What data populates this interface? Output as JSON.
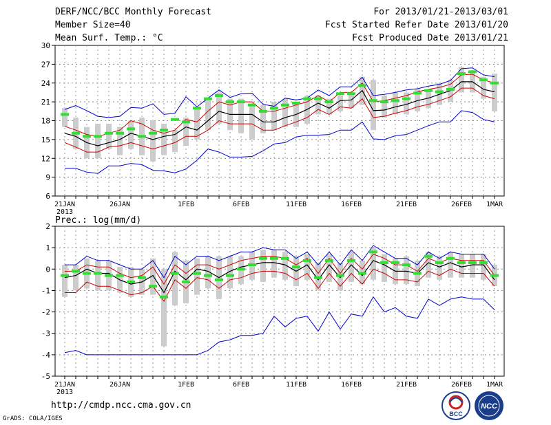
{
  "header": {
    "title": "DERF/NCC/BCC Monthly Forecast",
    "member_size": "Member Size=40",
    "variable": "Mean Surf. Temp.: °C",
    "period": "For 2013/01/21-2013/03/01",
    "fcst_started": "Fcst Started Refer Date 2013/01/20",
    "fcst_produced": "Fcst Produced Date 2013/01/21"
  },
  "footer": {
    "url": "http://cmdp.ncc.cma.gov.cn",
    "credit": "GrADS: COLA/IGES",
    "logos": [
      "BCC",
      "NCC"
    ]
  },
  "colors": {
    "ensemble_max_min": "#0000cc",
    "plus_minus_spread": "#cc0000",
    "ensemble_mean": "#000000",
    "box": "#cccccc",
    "marker": "#33dd33"
  },
  "chart_data": [
    {
      "type": "line",
      "title": "Mean Surf. Temp.: °C",
      "ylim": [
        6,
        30
      ],
      "yticks": [
        6,
        9,
        12,
        15,
        18,
        21,
        24,
        27,
        30
      ],
      "xticks": [
        {
          "day": 0,
          "label": "21JAN",
          "sub": "2013"
        },
        {
          "day": 5,
          "label": "26JAN"
        },
        {
          "day": 11,
          "label": "1FEB"
        },
        {
          "day": 16,
          "label": "6FEB"
        },
        {
          "day": 21,
          "label": "11FEB"
        },
        {
          "day": 26,
          "label": "16FEB"
        },
        {
          "day": 31,
          "label": "21FEB"
        },
        {
          "day": 36,
          "label": "26FEB"
        },
        {
          "day": 39,
          "label": "1MAR"
        }
      ],
      "series": [
        {
          "name": "max",
          "values": [
            19.8,
            20.4,
            19.6,
            18.7,
            18.5,
            18.7,
            20.1,
            20.0,
            20.7,
            19.0,
            19.2,
            21.8,
            20.2,
            21.6,
            22.9,
            21.7,
            22.3,
            22.4,
            20.6,
            20.3,
            21.6,
            21.3,
            21.6,
            22.9,
            22.0,
            23.4,
            23.4,
            24.9,
            22.0,
            22.2,
            22.5,
            22.9,
            23.1,
            23.5,
            23.8,
            24.4,
            26.3,
            26.4,
            25.3,
            25.0
          ]
        },
        {
          "name": "upper",
          "values": [
            17.1,
            16.5,
            15.8,
            15.5,
            16.0,
            16.5,
            18.0,
            17.5,
            16.5,
            16.0,
            16.5,
            18.2,
            17.8,
            19.5,
            21.0,
            20.5,
            21.0,
            21.0,
            19.5,
            19.5,
            20.0,
            20.5,
            21.0,
            22.0,
            21.0,
            22.5,
            22.5,
            24.0,
            21.0,
            21.2,
            21.6,
            22.0,
            22.6,
            23.0,
            23.3,
            23.8,
            25.3,
            25.4,
            24.5,
            24.0
          ]
        },
        {
          "name": "mean",
          "values": [
            16.0,
            15.5,
            14.5,
            14.0,
            14.5,
            15.0,
            16.0,
            15.5,
            15.0,
            15.5,
            15.8,
            17.0,
            16.5,
            18.0,
            19.5,
            19.0,
            19.0,
            19.0,
            17.8,
            17.8,
            18.5,
            19.0,
            19.8,
            20.8,
            20.0,
            21.2,
            21.3,
            22.8,
            19.6,
            19.7,
            20.2,
            20.6,
            21.2,
            21.6,
            22.2,
            22.8,
            24.2,
            24.2,
            23.0,
            22.6
          ]
        },
        {
          "name": "lower",
          "values": [
            14.5,
            13.8,
            13.0,
            13.0,
            13.8,
            14.0,
            14.5,
            14.0,
            13.5,
            14.0,
            14.5,
            15.5,
            15.5,
            16.5,
            18.0,
            17.5,
            17.5,
            17.5,
            16.5,
            16.5,
            17.2,
            17.8,
            18.5,
            19.8,
            19.0,
            20.2,
            20.0,
            21.5,
            18.5,
            18.7,
            19.2,
            19.6,
            20.2,
            20.6,
            21.2,
            21.8,
            23.2,
            23.2,
            22.0,
            21.5
          ]
        },
        {
          "name": "min",
          "values": [
            10.4,
            10.4,
            9.8,
            9.6,
            10.8,
            10.8,
            11.2,
            11.0,
            10.1,
            10.0,
            9.7,
            10.3,
            11.7,
            13.5,
            13.0,
            12.2,
            12.2,
            12.3,
            13.2,
            14.3,
            14.5,
            15.4,
            15.7,
            15.7,
            15.8,
            16.5,
            16.5,
            17.8,
            15.1,
            15.0,
            15.6,
            15.8,
            16.5,
            17.2,
            17.8,
            17.8,
            19.6,
            19.3,
            18.2,
            17.8
          ]
        },
        {
          "name": "box_high",
          "values": [
            20.0,
            18.5,
            17.0,
            17.5,
            17.5,
            17.0,
            18.0,
            18.5,
            18.0,
            17.5,
            16.5,
            18.5,
            20.0,
            21.5,
            22.5,
            21.5,
            21.5,
            20.5,
            20.5,
            21.0,
            21.5,
            21.0,
            22.0,
            22.0,
            21.5,
            22.0,
            22.5,
            25.0,
            24.5,
            22.0,
            22.5,
            22.5,
            23.0,
            23.0,
            24.0,
            24.5,
            26.5,
            26.0,
            25.0,
            25.5
          ]
        },
        {
          "name": "box_low",
          "values": [
            17.0,
            13.5,
            12.0,
            12.0,
            13.5,
            12.5,
            13.5,
            12.5,
            11.5,
            12.5,
            13.0,
            14.0,
            15.0,
            16.5,
            17.5,
            16.5,
            16.0,
            15.0,
            16.0,
            16.5,
            17.0,
            17.0,
            17.5,
            19.0,
            19.0,
            19.5,
            20.0,
            20.5,
            16.5,
            18.5,
            19.0,
            19.0,
            19.5,
            20.0,
            20.5,
            21.0,
            22.5,
            22.5,
            21.5,
            19.5
          ]
        },
        {
          "name": "marker",
          "values": [
            19.0,
            16.0,
            15.5,
            15.5,
            16.0,
            16.0,
            16.7,
            15.5,
            16.0,
            16.5,
            18.2,
            17.8,
            20.0,
            21.5,
            22.0,
            21.0,
            21.0,
            20.5,
            19.5,
            20.0,
            20.5,
            20.8,
            21.5,
            21.5,
            21.0,
            22.3,
            22.3,
            23.6,
            21.2,
            21.0,
            21.2,
            21.5,
            22.4,
            22.8,
            22.6,
            23.0,
            25.5,
            25.8,
            24.5,
            24.0
          ]
        }
      ]
    },
    {
      "type": "line",
      "title": "Prec.: log(mm/d)",
      "ylim": [
        -5,
        2
      ],
      "yticks": [
        -5,
        -4,
        -3,
        -2,
        -1,
        0,
        1,
        2
      ],
      "xticks": [
        {
          "day": 0,
          "label": "21JAN",
          "sub": "2013"
        },
        {
          "day": 5,
          "label": "26JAN"
        },
        {
          "day": 11,
          "label": "1FEB"
        },
        {
          "day": 16,
          "label": "6FEB"
        },
        {
          "day": 21,
          "label": "11FEB"
        },
        {
          "day": 26,
          "label": "16FEB"
        },
        {
          "day": 31,
          "label": "21FEB"
        },
        {
          "day": 36,
          "label": "26FEB"
        },
        {
          "day": 39,
          "label": "1MAR"
        }
      ],
      "series": [
        {
          "name": "max",
          "values": [
            0.2,
            0.2,
            0.6,
            0.4,
            0.4,
            0.2,
            0.0,
            0.0,
            0.4,
            -0.4,
            0.6,
            0.2,
            0.6,
            0.6,
            0.4,
            0.6,
            0.8,
            0.8,
            1.0,
            0.9,
            0.9,
            0.5,
            0.8,
            0.2,
            0.8,
            0.2,
            0.9,
            0.4,
            1.1,
            0.8,
            0.5,
            0.5,
            0.2,
            0.8,
            0.5,
            0.8,
            0.7,
            0.7,
            0.7,
            0.0
          ]
        },
        {
          "name": "upper",
          "values": [
            -0.1,
            -0.1,
            0.2,
            0.1,
            0.1,
            -0.2,
            -0.4,
            -0.3,
            0.1,
            -0.7,
            0.2,
            -0.2,
            0.2,
            0.2,
            0.0,
            0.2,
            0.4,
            0.5,
            0.6,
            0.6,
            0.5,
            0.2,
            0.5,
            -0.2,
            0.5,
            -0.2,
            0.5,
            0.0,
            0.7,
            0.5,
            0.2,
            0.2,
            -0.1,
            0.5,
            0.3,
            0.5,
            0.4,
            0.4,
            0.4,
            -0.3
          ]
        },
        {
          "name": "mean",
          "values": [
            -0.4,
            -0.3,
            0.0,
            -0.2,
            -0.2,
            -0.5,
            -0.7,
            -0.6,
            -0.3,
            -1.1,
            -0.1,
            -0.5,
            0.0,
            -0.1,
            -0.4,
            -0.1,
            0.1,
            0.2,
            0.3,
            0.3,
            0.2,
            -0.1,
            0.2,
            -0.5,
            0.2,
            -0.4,
            0.2,
            -0.3,
            0.4,
            0.2,
            -0.1,
            -0.1,
            -0.2,
            0.3,
            0.1,
            0.3,
            0.1,
            0.2,
            0.2,
            -0.5
          ]
        },
        {
          "name": "lower",
          "values": [
            -1.1,
            -1.1,
            -0.6,
            -0.8,
            -0.8,
            -1.0,
            -1.2,
            -1.1,
            -0.8,
            -1.5,
            -0.5,
            -0.9,
            -0.4,
            -0.5,
            -0.9,
            -0.5,
            -0.4,
            -0.2,
            -0.1,
            -0.1,
            -0.2,
            -0.5,
            -0.2,
            -0.9,
            -0.2,
            -0.8,
            -0.2,
            -0.7,
            0.0,
            -0.2,
            -0.5,
            -0.5,
            -0.6,
            -0.1,
            -0.3,
            0.0,
            -0.2,
            -0.2,
            -0.2,
            -0.8
          ]
        },
        {
          "name": "min",
          "values": [
            -3.9,
            -3.8,
            -4.0,
            -4.0,
            -4.0,
            -4.0,
            -4.0,
            -4.0,
            -4.0,
            -4.0,
            -4.0,
            -4.0,
            -4.0,
            -3.8,
            -3.4,
            -3.3,
            -3.1,
            -3.1,
            -3.0,
            -2.2,
            -2.7,
            -2.3,
            -2.2,
            -2.9,
            -2.0,
            -2.8,
            -2.1,
            -2.2,
            -1.3,
            -2.0,
            -1.8,
            -2.2,
            -2.3,
            -1.4,
            -1.7,
            -1.4,
            -1.3,
            -1.4,
            -1.4,
            -1.9
          ]
        },
        {
          "name": "box_high",
          "values": [
            0.2,
            0.2,
            0.5,
            0.4,
            0.4,
            0.1,
            0.1,
            0.0,
            0.5,
            0.0,
            0.8,
            0.4,
            0.5,
            0.6,
            0.6,
            0.6,
            0.6,
            0.8,
            0.9,
            0.9,
            0.8,
            0.6,
            0.7,
            0.3,
            0.7,
            0.3,
            0.8,
            0.4,
            1.0,
            0.7,
            0.5,
            0.6,
            0.4,
            0.8,
            0.6,
            0.8,
            0.7,
            0.7,
            0.7,
            0.2
          ]
        },
        {
          "name": "box_low",
          "values": [
            -1.3,
            -1.0,
            -0.9,
            -1.0,
            -1.0,
            -1.1,
            -1.3,
            -1.2,
            -1.2,
            -3.6,
            -1.7,
            -1.6,
            -1.2,
            -0.9,
            -1.4,
            -0.9,
            -0.7,
            -0.5,
            -0.6,
            -0.4,
            -0.5,
            -0.8,
            -0.5,
            -1.0,
            -0.6,
            -1.0,
            -0.6,
            -0.7,
            -0.5,
            -0.6,
            -0.7,
            -0.7,
            -0.8,
            -0.4,
            -0.5,
            -0.4,
            -0.4,
            -0.4,
            -0.5,
            -0.8
          ]
        },
        {
          "name": "marker",
          "values": [
            -0.3,
            -0.1,
            -0.2,
            -0.2,
            -0.3,
            -0.3,
            -0.6,
            -0.4,
            -0.8,
            -1.3,
            -0.2,
            -0.6,
            -0.2,
            -0.3,
            -0.5,
            -0.3,
            0.0,
            0.2,
            0.5,
            0.5,
            0.5,
            0.1,
            0.4,
            -0.4,
            0.4,
            -0.3,
            0.4,
            -0.2,
            0.8,
            0.3,
            0.3,
            0.2,
            -0.2,
            0.6,
            0.3,
            0.5,
            0.3,
            0.3,
            0.3,
            -0.3
          ]
        }
      ]
    }
  ]
}
